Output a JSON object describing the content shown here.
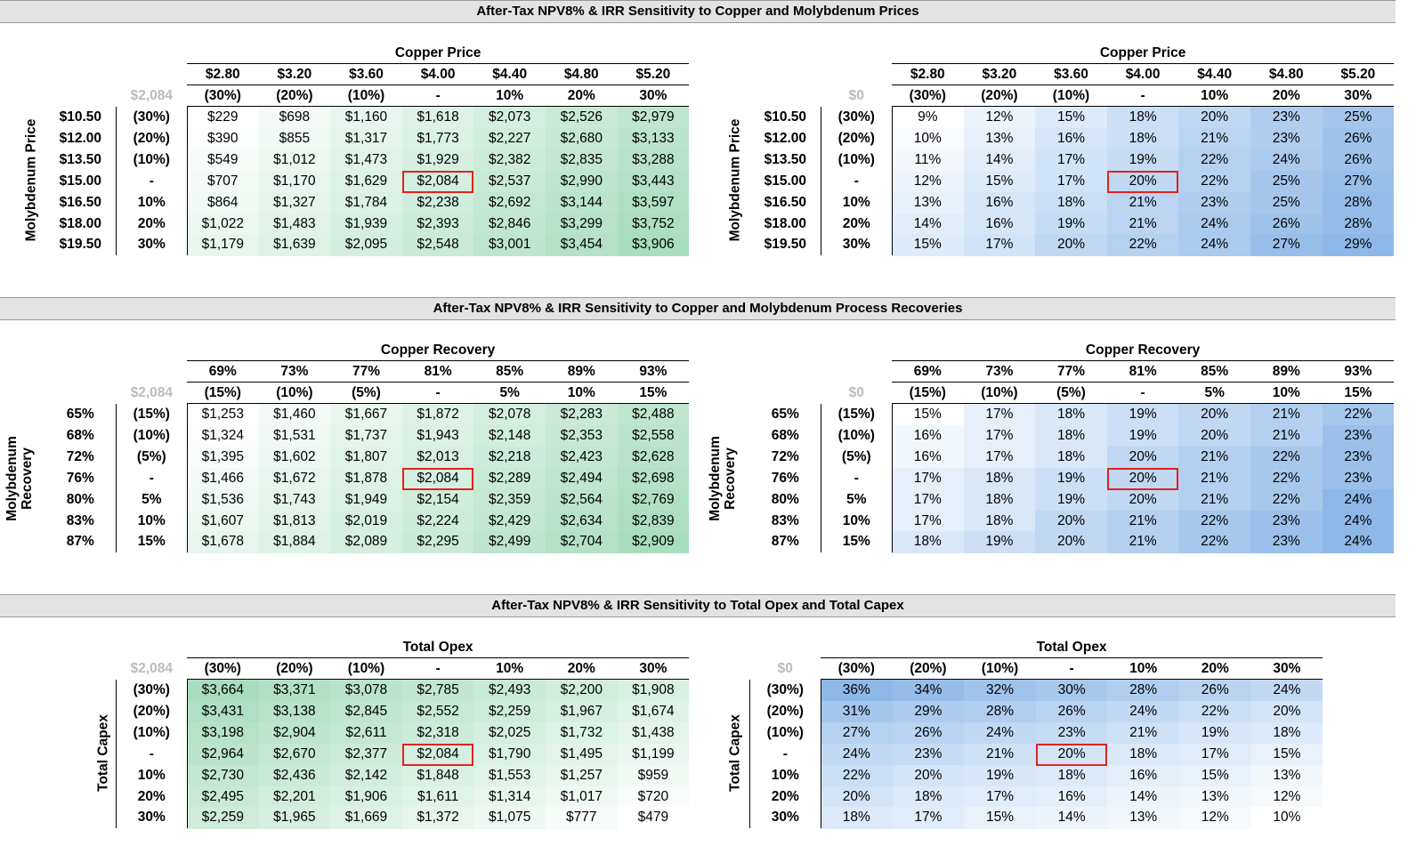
{
  "sections": [
    {
      "title": "After-Tax NPV8% & IRR Sensitivity to Copper and Molybdenum Prices",
      "npv": {
        "corner": "$2,084",
        "col_title": "Copper Price",
        "col_values": [
          "$2.80",
          "$3.20",
          "$3.60",
          "$4.00",
          "$4.40",
          "$4.80",
          "$5.20"
        ],
        "col_pcts": [
          "(30%)",
          "(20%)",
          "(10%)",
          "-",
          "10%",
          "20%",
          "30%"
        ],
        "row_title": "Molybdenum Price",
        "row_values": [
          "$10.50",
          "$12.00",
          "$13.50",
          "$15.00",
          "$16.50",
          "$18.00",
          "$19.50"
        ],
        "row_pcts": [
          "(30%)",
          "(20%)",
          "(10%)",
          "-",
          "10%",
          "20%",
          "30%"
        ],
        "cells": [
          [
            "$229",
            "$698",
            "$1,160",
            "$1,618",
            "$2,073",
            "$2,526",
            "$2,979"
          ],
          [
            "$390",
            "$855",
            "$1,317",
            "$1,773",
            "$2,227",
            "$2,680",
            "$3,133"
          ],
          [
            "$549",
            "$1,012",
            "$1,473",
            "$1,929",
            "$2,382",
            "$2,835",
            "$3,288"
          ],
          [
            "$707",
            "$1,170",
            "$1,629",
            "$2,084",
            "$2,537",
            "$2,990",
            "$3,443"
          ],
          [
            "$864",
            "$1,327",
            "$1,784",
            "$2,238",
            "$2,692",
            "$3,144",
            "$3,597"
          ],
          [
            "$1,022",
            "$1,483",
            "$1,939",
            "$2,393",
            "$2,846",
            "$3,299",
            "$3,752"
          ],
          [
            "$1,179",
            "$1,639",
            "$2,095",
            "$2,548",
            "$3,001",
            "$3,454",
            "$3,906"
          ]
        ]
      },
      "irr": {
        "corner": "$0",
        "col_title": "Copper Price",
        "col_values": [
          "$2.80",
          "$3.20",
          "$3.60",
          "$4.00",
          "$4.40",
          "$4.80",
          "$5.20"
        ],
        "col_pcts": [
          "(30%)",
          "(20%)",
          "(10%)",
          "-",
          "10%",
          "20%",
          "30%"
        ],
        "row_title": "Molybdenum Price",
        "row_values": [
          "$10.50",
          "$12.00",
          "$13.50",
          "$15.00",
          "$16.50",
          "$18.00",
          "$19.50"
        ],
        "row_pcts": [
          "(30%)",
          "(20%)",
          "(10%)",
          "-",
          "10%",
          "20%",
          "30%"
        ],
        "cells": [
          [
            "9%",
            "12%",
            "15%",
            "18%",
            "20%",
            "23%",
            "25%"
          ],
          [
            "10%",
            "13%",
            "16%",
            "18%",
            "21%",
            "23%",
            "26%"
          ],
          [
            "11%",
            "14%",
            "17%",
            "19%",
            "22%",
            "24%",
            "26%"
          ],
          [
            "12%",
            "15%",
            "17%",
            "20%",
            "22%",
            "25%",
            "27%"
          ],
          [
            "13%",
            "16%",
            "18%",
            "21%",
            "23%",
            "25%",
            "28%"
          ],
          [
            "14%",
            "16%",
            "19%",
            "21%",
            "24%",
            "26%",
            "28%"
          ],
          [
            "15%",
            "17%",
            "20%",
            "22%",
            "24%",
            "27%",
            "29%"
          ]
        ]
      }
    },
    {
      "title": "After-Tax NPV8% & IRR Sensitivity to Copper and Molybdenum Process Recoveries",
      "npv": {
        "corner": "$2,084",
        "col_title": "Copper Recovery",
        "col_values": [
          "69%",
          "73%",
          "77%",
          "81%",
          "85%",
          "89%",
          "93%"
        ],
        "col_pcts": [
          "(15%)",
          "(10%)",
          "(5%)",
          "-",
          "5%",
          "10%",
          "15%"
        ],
        "row_title": "Molybdenum Recovery",
        "row_values": [
          "65%",
          "68%",
          "72%",
          "76%",
          "80%",
          "83%",
          "87%"
        ],
        "row_pcts": [
          "(15%)",
          "(10%)",
          "(5%)",
          "-",
          "5%",
          "10%",
          "15%"
        ],
        "cells": [
          [
            "$1,253",
            "$1,460",
            "$1,667",
            "$1,872",
            "$2,078",
            "$2,283",
            "$2,488"
          ],
          [
            "$1,324",
            "$1,531",
            "$1,737",
            "$1,943",
            "$2,148",
            "$2,353",
            "$2,558"
          ],
          [
            "$1,395",
            "$1,602",
            "$1,807",
            "$2,013",
            "$2,218",
            "$2,423",
            "$2,628"
          ],
          [
            "$1,466",
            "$1,672",
            "$1,878",
            "$2,084",
            "$2,289",
            "$2,494",
            "$2,698"
          ],
          [
            "$1,536",
            "$1,743",
            "$1,949",
            "$2,154",
            "$2,359",
            "$2,564",
            "$2,769"
          ],
          [
            "$1,607",
            "$1,813",
            "$2,019",
            "$2,224",
            "$2,429",
            "$2,634",
            "$2,839"
          ],
          [
            "$1,678",
            "$1,884",
            "$2,089",
            "$2,295",
            "$2,499",
            "$2,704",
            "$2,909"
          ]
        ]
      },
      "irr": {
        "corner": "$0",
        "col_title": "Copper Recovery",
        "col_values": [
          "69%",
          "73%",
          "77%",
          "81%",
          "85%",
          "89%",
          "93%"
        ],
        "col_pcts": [
          "(15%)",
          "(10%)",
          "(5%)",
          "-",
          "5%",
          "10%",
          "15%"
        ],
        "row_title": "Molybdenum Recovery",
        "row_values": [
          "65%",
          "68%",
          "72%",
          "76%",
          "80%",
          "83%",
          "87%"
        ],
        "row_pcts": [
          "(15%)",
          "(10%)",
          "(5%)",
          "-",
          "5%",
          "10%",
          "15%"
        ],
        "cells": [
          [
            "15%",
            "17%",
            "18%",
            "19%",
            "20%",
            "21%",
            "22%"
          ],
          [
            "16%",
            "17%",
            "18%",
            "19%",
            "20%",
            "21%",
            "23%"
          ],
          [
            "16%",
            "17%",
            "18%",
            "20%",
            "21%",
            "22%",
            "23%"
          ],
          [
            "17%",
            "18%",
            "19%",
            "20%",
            "21%",
            "22%",
            "23%"
          ],
          [
            "17%",
            "18%",
            "19%",
            "20%",
            "21%",
            "22%",
            "24%"
          ],
          [
            "17%",
            "18%",
            "20%",
            "21%",
            "22%",
            "23%",
            "24%"
          ],
          [
            "18%",
            "19%",
            "20%",
            "21%",
            "22%",
            "23%",
            "24%"
          ]
        ]
      }
    },
    {
      "title": "After-Tax NPV8% & IRR Sensitivity to Total Opex and Total Capex",
      "npv": {
        "corner": "$2,084",
        "col_title": "Total Opex",
        "col_pcts": [
          "(30%)",
          "(20%)",
          "(10%)",
          "-",
          "10%",
          "20%",
          "30%"
        ],
        "row_title": "Total Capex",
        "row_pcts": [
          "(30%)",
          "(20%)",
          "(10%)",
          "-",
          "10%",
          "20%",
          "30%"
        ],
        "cells": [
          [
            "$3,664",
            "$3,371",
            "$3,078",
            "$2,785",
            "$2,493",
            "$2,200",
            "$1,908"
          ],
          [
            "$3,431",
            "$3,138",
            "$2,845",
            "$2,552",
            "$2,259",
            "$1,967",
            "$1,674"
          ],
          [
            "$3,198",
            "$2,904",
            "$2,611",
            "$2,318",
            "$2,025",
            "$1,732",
            "$1,438"
          ],
          [
            "$2,964",
            "$2,670",
            "$2,377",
            "$2,084",
            "$1,790",
            "$1,495",
            "$1,199"
          ],
          [
            "$2,730",
            "$2,436",
            "$2,142",
            "$1,848",
            "$1,553",
            "$1,257",
            "$959"
          ],
          [
            "$2,495",
            "$2,201",
            "$1,906",
            "$1,611",
            "$1,314",
            "$1,017",
            "$720"
          ],
          [
            "$2,259",
            "$1,965",
            "$1,669",
            "$1,372",
            "$1,075",
            "$777",
            "$479"
          ]
        ]
      },
      "irr": {
        "corner": "$0",
        "col_title": "Total Opex",
        "col_pcts": [
          "(30%)",
          "(20%)",
          "(10%)",
          "-",
          "10%",
          "20%",
          "30%"
        ],
        "row_title": "Total Capex",
        "row_pcts": [
          "(30%)",
          "(20%)",
          "(10%)",
          "-",
          "10%",
          "20%",
          "30%"
        ],
        "cells": [
          [
            "36%",
            "34%",
            "32%",
            "30%",
            "28%",
            "26%",
            "24%"
          ],
          [
            "31%",
            "29%",
            "28%",
            "26%",
            "24%",
            "22%",
            "20%"
          ],
          [
            "27%",
            "26%",
            "24%",
            "23%",
            "21%",
            "19%",
            "18%"
          ],
          [
            "24%",
            "23%",
            "21%",
            "20%",
            "18%",
            "17%",
            "15%"
          ],
          [
            "22%",
            "20%",
            "19%",
            "18%",
            "16%",
            "15%",
            "13%"
          ],
          [
            "20%",
            "18%",
            "17%",
            "16%",
            "14%",
            "13%",
            "12%"
          ],
          [
            "18%",
            "17%",
            "15%",
            "14%",
            "13%",
            "12%",
            "10%"
          ]
        ]
      }
    }
  ],
  "colors": {
    "npv_low": "#ffffff",
    "npv_high": "#a9ddbf",
    "irr_low": "#ffffff",
    "irr_high": "#8db8e8",
    "highlight": "#e0231f",
    "band": "#e3e3e3"
  }
}
